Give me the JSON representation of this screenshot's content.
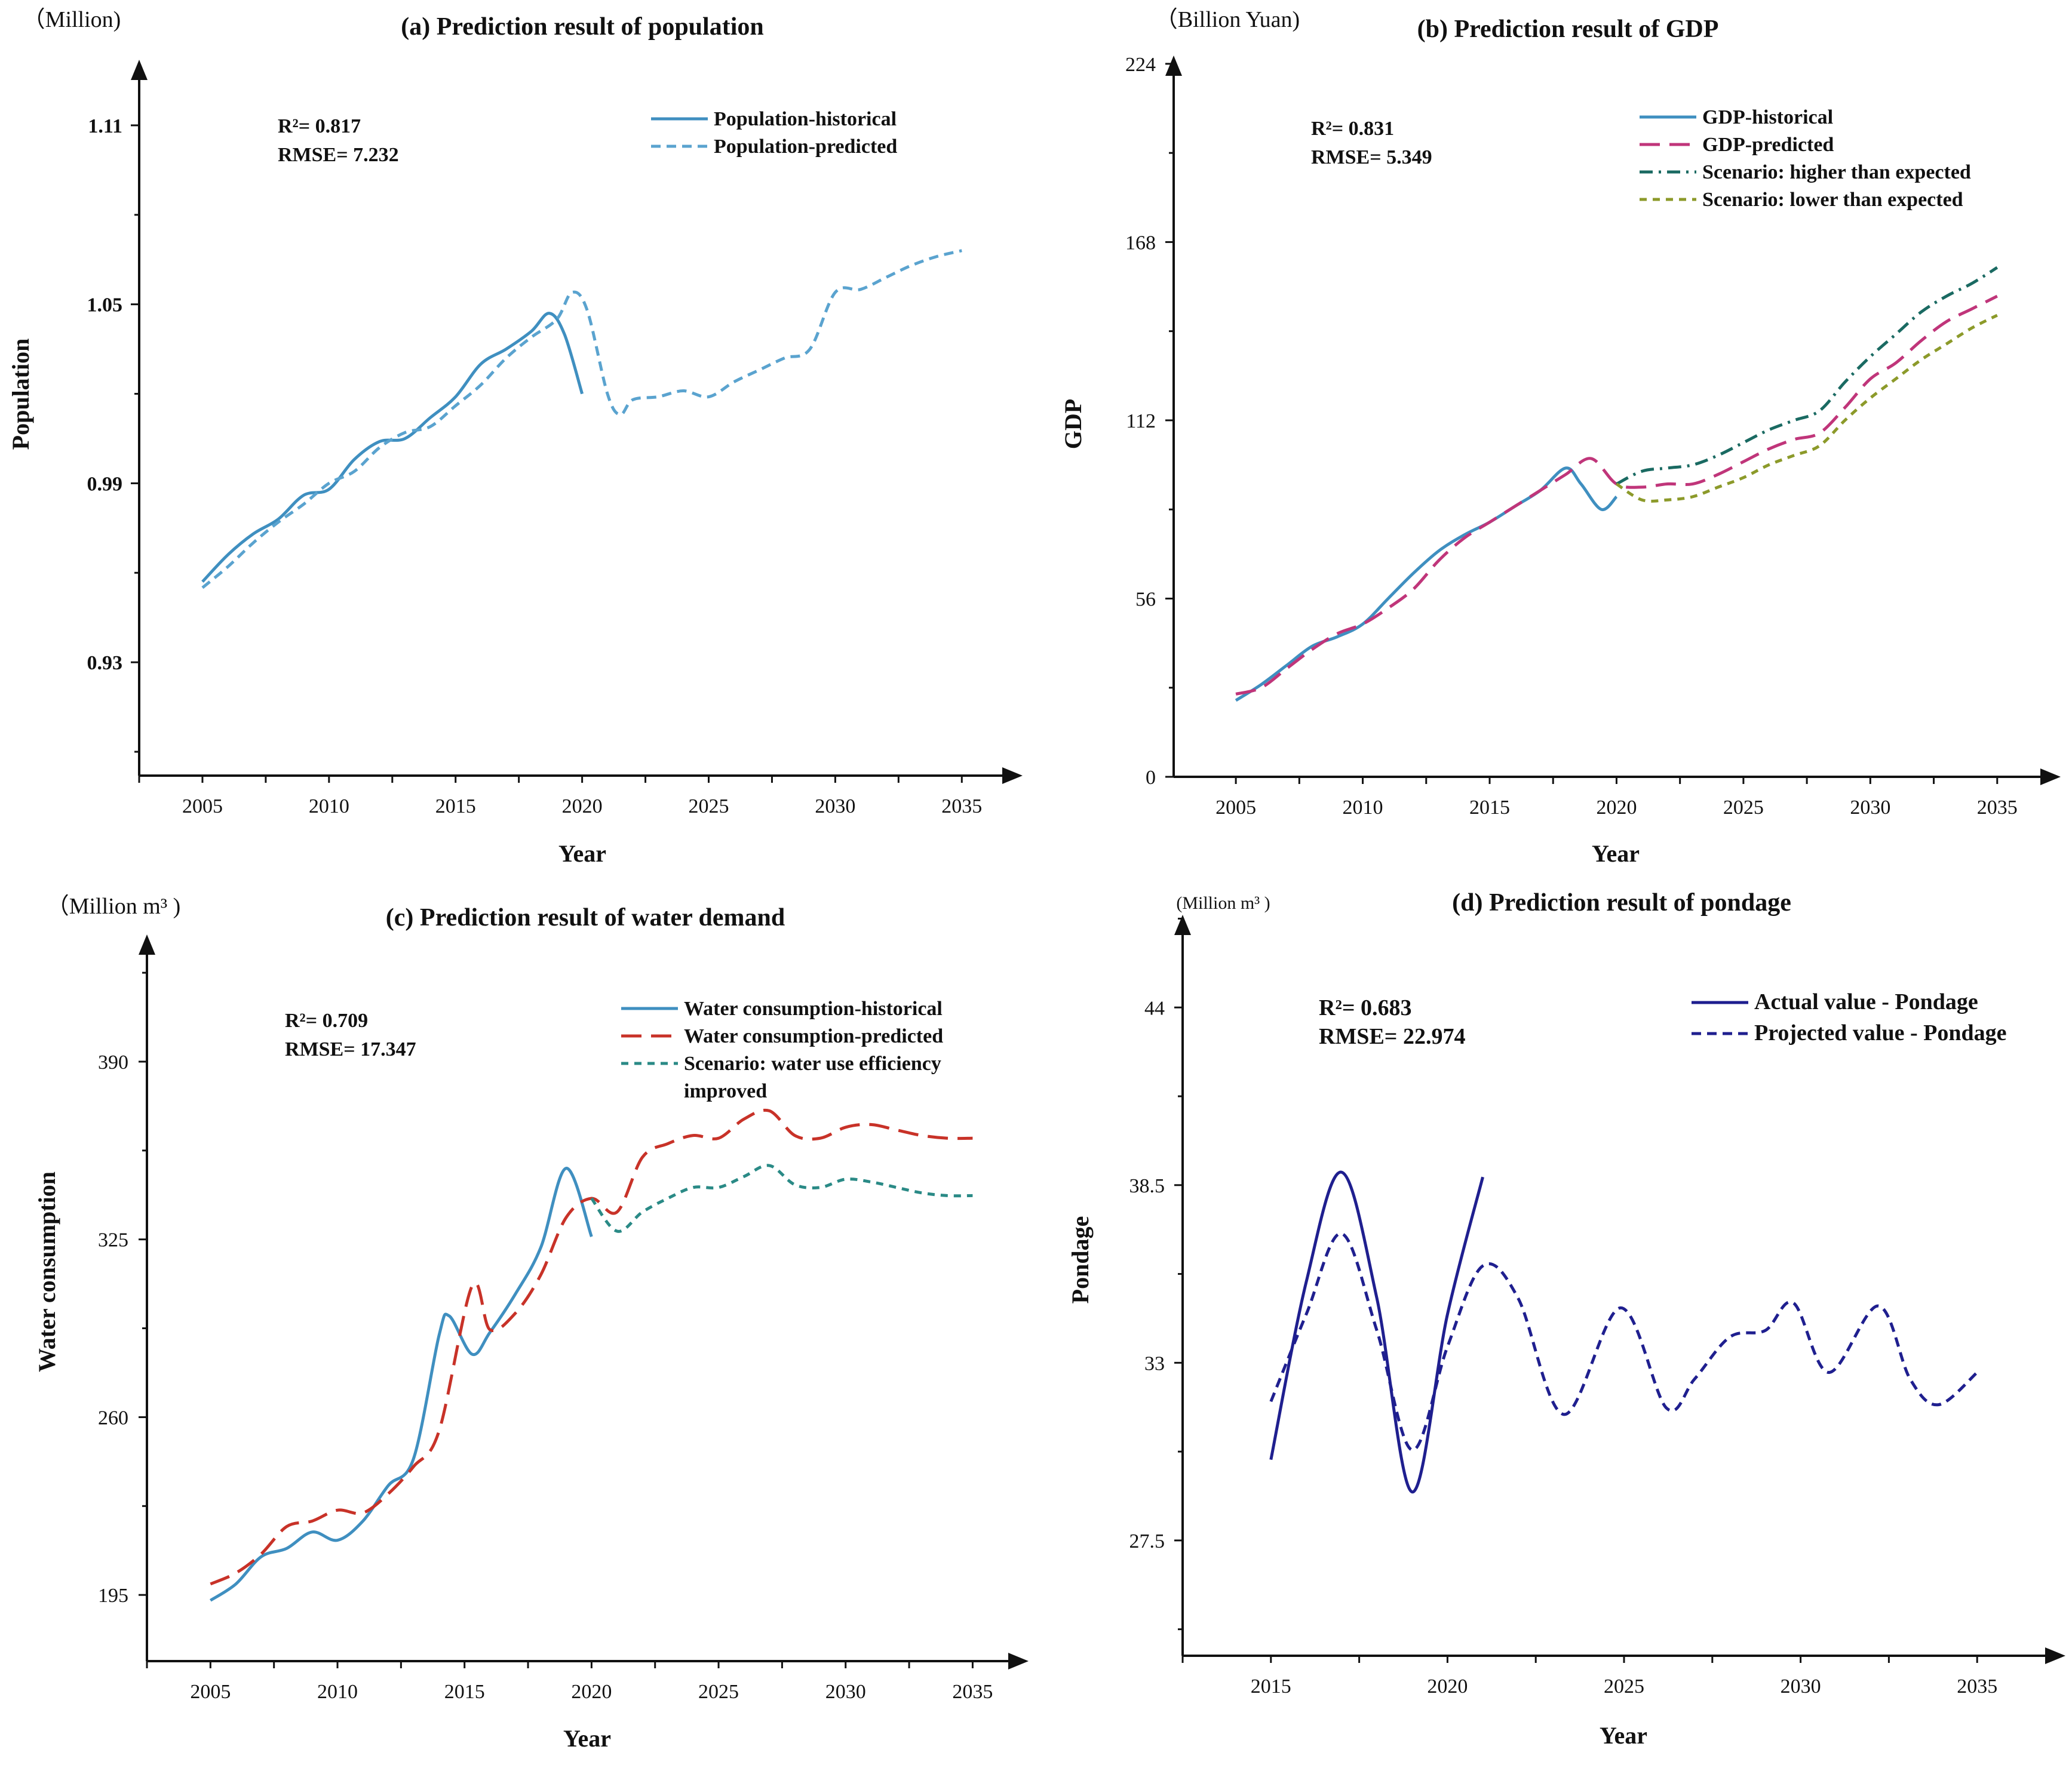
{
  "chart_data": [
    {
      "type": "line",
      "title": "(a) Prediction result of population",
      "unit": "（Million)",
      "xlabel": "Year",
      "ylabel": "Population",
      "xticks": [
        2005,
        2010,
        2015,
        2020,
        2025,
        2030,
        2035
      ],
      "yticks": [
        "0.93",
        "0.99",
        "1.05",
        "1.11"
      ],
      "xlim": [
        2002.5,
        2037.4
      ],
      "ylim": [
        0.892,
        1.132
      ],
      "stats": [
        "R²=  0.817",
        "RMSE= 7.232"
      ],
      "series": [
        {
          "name": "Population-historical",
          "color": "#3f8fc0",
          "style": "solid",
          "x": [
            2005,
            2006,
            2007,
            2008,
            2009,
            2010,
            2011,
            2012,
            2013,
            2014,
            2015,
            2016,
            2017,
            2018,
            2018.7,
            2019.3,
            2020
          ],
          "y": [
            0.957,
            0.966,
            0.973,
            0.978,
            0.986,
            0.988,
            0.998,
            1.004,
            1.005,
            1.012,
            1.019,
            1.03,
            1.035,
            1.041,
            1.047,
            1.04,
            1.02
          ]
        },
        {
          "name": "Population-predicted",
          "color": "#5aa3cf",
          "style": "dash",
          "x": [
            2005,
            2006,
            2007,
            2008,
            2009,
            2010,
            2011,
            2012,
            2013,
            2014,
            2015,
            2016,
            2017,
            2018,
            2019,
            2019.6,
            2020.2,
            2021,
            2021.5,
            2022,
            2023,
            2024,
            2025,
            2026,
            2027,
            2028,
            2029,
            2030,
            2031,
            2032,
            2033,
            2034,
            2035
          ],
          "y": [
            0.955,
            0.962,
            0.97,
            0.977,
            0.983,
            0.99,
            0.994,
            1.002,
            1.007,
            1.009,
            1.016,
            1.023,
            1.032,
            1.039,
            1.045,
            1.054,
            1.048,
            1.02,
            1.013,
            1.018,
            1.019,
            1.021,
            1.019,
            1.024,
            1.028,
            1.032,
            1.035,
            1.054,
            1.055,
            1.059,
            1.063,
            1.066,
            1.068
          ]
        }
      ]
    },
    {
      "type": "line",
      "title": "(b) Prediction result of GDP",
      "unit": "（Billion Yuan)",
      "xlabel": "Year",
      "ylabel": "GDP",
      "xticks": [
        2005,
        2010,
        2015,
        2020,
        2025,
        2030,
        2035
      ],
      "yticks": [
        "0",
        "56",
        "112",
        "168",
        "224"
      ],
      "xlim": [
        2002.55,
        2037.5
      ],
      "ylim": [
        0,
        226.6
      ],
      "stats": [
        "R²= 0.831",
        "RMSE=  5.349"
      ],
      "series": [
        {
          "name": "GDP-historical",
          "color": "#3f8fc0",
          "style": "solid",
          "x": [
            2005,
            2006,
            2007,
            2008,
            2009,
            2010,
            2011,
            2012,
            2013,
            2014,
            2015,
            2016,
            2017,
            2018,
            2018.6,
            2019.4,
            2020
          ],
          "y": [
            24,
            29,
            35,
            41,
            44,
            48,
            56,
            64,
            71,
            76,
            80,
            85,
            90,
            97,
            92,
            84,
            88
          ]
        },
        {
          "name": "GDP-predicted",
          "color": "#c0357a",
          "style": "longdash",
          "x": [
            2005,
            2006,
            2007,
            2008,
            2009,
            2010,
            2011,
            2012,
            2013,
            2014,
            2015,
            2016,
            2017,
            2018,
            2019,
            2020,
            2021,
            2022,
            2023,
            2024,
            2025,
            2026,
            2027,
            2028,
            2029,
            2030,
            2031,
            2032,
            2033,
            2034,
            2035
          ],
          "y": [
            26,
            28,
            34,
            40,
            45,
            48,
            53,
            59,
            68,
            75,
            80,
            85,
            90,
            95,
            100,
            92,
            91,
            92,
            92,
            95,
            99,
            103,
            106,
            108,
            116,
            125,
            130,
            137,
            143,
            147,
            151
          ]
        },
        {
          "name": "Scenario: higher than expected",
          "color": "#1a6a62",
          "style": "dashdot",
          "x": [
            2020,
            2021,
            2022,
            2023,
            2024,
            2025,
            2026,
            2027,
            2028,
            2029,
            2030,
            2031,
            2032,
            2033,
            2034,
            2035
          ],
          "y": [
            92,
            96,
            97,
            98,
            101,
            105,
            109,
            112,
            115,
            124,
            132,
            139,
            146,
            151,
            155,
            160
          ]
        },
        {
          "name": "Scenario: lower than expected",
          "color": "#8c9a2a",
          "style": "shortdash",
          "x": [
            2020,
            2021,
            2022,
            2023,
            2024,
            2025,
            2026,
            2027,
            2028,
            2029,
            2030,
            2031,
            2032,
            2033,
            2034,
            2035
          ],
          "y": [
            92,
            87,
            87,
            88,
            91,
            94,
            98,
            101,
            104,
            112,
            119,
            125,
            131,
            136,
            141,
            145
          ]
        }
      ]
    },
    {
      "type": "line",
      "title": "(c) Prediction result of water demand",
      "unit": "（Million m³ )",
      "xlabel": "Year",
      "ylabel": "Water consumption",
      "xticks": [
        2005,
        2010,
        2015,
        2020,
        2025,
        2030,
        2035
      ],
      "yticks": [
        "195",
        "260",
        "325",
        "390"
      ],
      "xlim": [
        2002.5,
        2037.2
      ],
      "ylim": [
        170.8,
        436.5
      ],
      "stats": [
        "R²= 0.709",
        "RMSE= 17.347"
      ],
      "series": [
        {
          "name": "Water consumption-historical",
          "color": "#3f8fc0",
          "style": "solid",
          "x": [
            2005,
            2006,
            2007,
            2008,
            2009,
            2010,
            2011,
            2012,
            2013,
            2014,
            2014.4,
            2015.3,
            2016,
            2017,
            2018,
            2019,
            2020
          ],
          "y": [
            193,
            199,
            209,
            212,
            218,
            215,
            222,
            235,
            245,
            290,
            297,
            283,
            291,
            305,
            322,
            351,
            326
          ]
        },
        {
          "name": "Water consumption-predicted",
          "color": "#c83228",
          "style": "longdash",
          "x": [
            2005,
            2006,
            2007,
            2008,
            2009,
            2010,
            2011,
            2012,
            2013,
            2014,
            2015.3,
            2016,
            2017,
            2018,
            2019,
            2020,
            2021,
            2022,
            2023,
            2024,
            2025,
            2026,
            2027,
            2028,
            2029,
            2030,
            2031,
            2032,
            2033,
            2034,
            2035
          ],
          "y": [
            199,
            203,
            210,
            220,
            222,
            226,
            225,
            232,
            242,
            255,
            308,
            292,
            298,
            312,
            333,
            340,
            335,
            355,
            360,
            363,
            362,
            369,
            372,
            363,
            362,
            366,
            367,
            365,
            363,
            362,
            362
          ]
        },
        {
          "name": "Scenario: water use efficiency improved",
          "color": "#2a8a86",
          "style": "shortdash",
          "x": [
            2020,
            2021,
            2022,
            2023,
            2024,
            2025,
            2026,
            2027,
            2028,
            2029,
            2030,
            2031,
            2032,
            2033,
            2034,
            2035
          ],
          "y": [
            340,
            328,
            335,
            340,
            344,
            344,
            348,
            352,
            345,
            344,
            347,
            346,
            344,
            342,
            341,
            341
          ]
        }
      ],
      "legend_extra_line": "improved"
    },
    {
      "type": "line",
      "title": "(d) Prediction result of pondage",
      "unit": "(Million m³ )",
      "xlabel": "Year",
      "ylabel": "Pondage",
      "xticks": [
        2015,
        2020,
        2025,
        2030,
        2035
      ],
      "yticks": [
        "27.5",
        "33",
        "38.5",
        "44"
      ],
      "xlim": [
        2012.5,
        2037.5
      ],
      "ylim": [
        23.93,
        46.87
      ],
      "stats": [
        "R²= 0.683",
        "RMSE= 22.974"
      ],
      "series": [
        {
          "name": "Actual value - Pondage",
          "color": "#1f1f8f",
          "style": "solid",
          "x": [
            2015,
            2016,
            2017,
            2018,
            2019,
            2020,
            2021
          ],
          "y": [
            30.0,
            35.5,
            38.9,
            35.0,
            29.0,
            34.5,
            38.75
          ]
        },
        {
          "name": "Projected value - Pondage",
          "color": "#1f1f8f",
          "style": "dash",
          "x": [
            2015,
            2016,
            2017,
            2018,
            2019,
            2020,
            2021,
            2022,
            2023.3,
            2024.9,
            2026.2,
            2027,
            2028,
            2029,
            2029.8,
            2030.8,
            2032.2,
            2033.1,
            2033.9,
            2035
          ],
          "y": [
            31.8,
            34.5,
            37.0,
            34.0,
            30.3,
            33.5,
            36.0,
            35.0,
            31.4,
            34.7,
            31.6,
            32.5,
            33.8,
            34.0,
            34.85,
            32.7,
            34.76,
            32.5,
            31.7,
            32.7
          ]
        }
      ]
    }
  ]
}
